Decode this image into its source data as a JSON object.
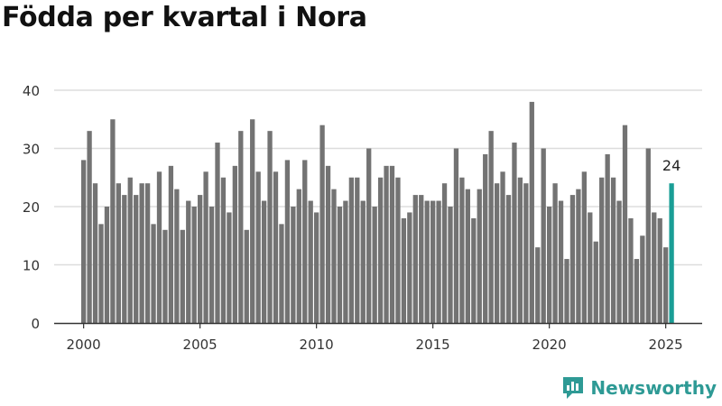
{
  "title": "Födda per kvartal i Nora",
  "brand": "Newsworthy",
  "colors": {
    "bar": "#737373",
    "highlight": "#1a9e96",
    "grid": "#dddddd",
    "axis": "#333333",
    "brand": "#2e9a95"
  },
  "chart_data": {
    "type": "bar",
    "title": "Födda per kvartal i Nora",
    "xlabel": "",
    "ylabel": "",
    "x_start": 2000,
    "x_ticks": [
      2000,
      2005,
      2010,
      2015,
      2020,
      2025
    ],
    "y_ticks": [
      0,
      10,
      20,
      30,
      40
    ],
    "ylim": [
      0,
      40
    ],
    "grid": true,
    "values": [
      28,
      33,
      24,
      17,
      20,
      35,
      24,
      22,
      25,
      22,
      24,
      24,
      17,
      26,
      16,
      27,
      23,
      16,
      21,
      20,
      22,
      26,
      20,
      31,
      25,
      19,
      27,
      33,
      16,
      35,
      26,
      21,
      33,
      26,
      17,
      28,
      20,
      23,
      28,
      21,
      19,
      34,
      27,
      23,
      20,
      21,
      25,
      25,
      21,
      30,
      20,
      25,
      27,
      27,
      25,
      18,
      19,
      22,
      22,
      21,
      21,
      21,
      24,
      20,
      30,
      25,
      23,
      18,
      23,
      29,
      33,
      24,
      26,
      22,
      31,
      25,
      24,
      38,
      13,
      30,
      20,
      24,
      21,
      11,
      22,
      23,
      26,
      19,
      14,
      25,
      29,
      25,
      21,
      34,
      18,
      11,
      15,
      30,
      19,
      18,
      13,
      24
    ],
    "highlight_index": 101,
    "highlight_label": "24"
  }
}
